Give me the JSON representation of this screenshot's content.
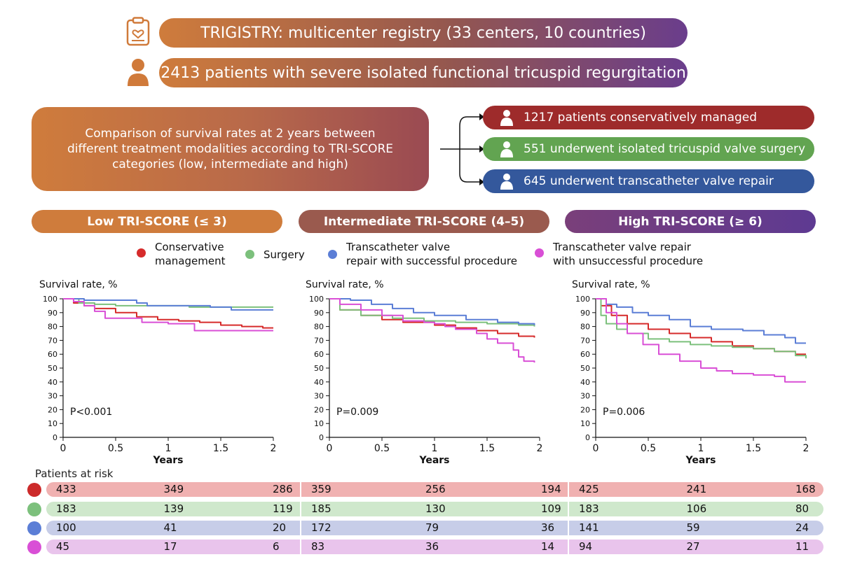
{
  "header": {
    "registry": "TRIGISTRY: multicenter registry (33 centers, 10 countries)",
    "population": "2413 patients with severe isolated functional tricuspid regurgitation"
  },
  "summary": {
    "line1": "Comparison of survival rates at 2 years between",
    "line2": "different treatment modalities according to TRI-SCORE",
    "line3": "categories (low, intermediate and high)"
  },
  "arms": [
    {
      "label": "1217 patients conservatively managed",
      "color": "#9e2b2b"
    },
    {
      "label": "551 underwent isolated tricuspid valve surgery",
      "color": "#62a451"
    },
    {
      "label": "645 underwent transcatheter valve repair",
      "color": "#34589c"
    }
  ],
  "categories": [
    {
      "label": "Low TRI-SCORE (≤ 3)"
    },
    {
      "label": "Intermediate TRI-SCORE (4–5)"
    },
    {
      "label": "High TRI-SCORE (≥ 6)"
    }
  ],
  "legend": [
    {
      "line1": "Conservative",
      "line2": "management",
      "color": "#d62b2b"
    },
    {
      "line1": "Surgery",
      "line2": "",
      "color": "#7cc07c"
    },
    {
      "line1": "Transcatheter valve",
      "line2": "repair with successful procedure",
      "color": "#5b7ed6"
    },
    {
      "line1": "Transcatheter valve repair",
      "line2": "with unsuccessful procedure",
      "color": "#d94fd6"
    }
  ],
  "risk": {
    "title": "Patients at risk",
    "rows": [
      {
        "color": "#cc2a2a",
        "bg": "#f0b1b1",
        "values": [
          [
            "433",
            "349",
            "286"
          ],
          [
            "359",
            "256",
            "194"
          ],
          [
            "425",
            "241",
            "168"
          ]
        ]
      },
      {
        "color": "#7cc07c",
        "bg": "#cfe8cc",
        "values": [
          [
            "183",
            "139",
            "119"
          ],
          [
            "185",
            "130",
            "109"
          ],
          [
            "183",
            "106",
            "80"
          ]
        ]
      },
      {
        "color": "#5b7ed6",
        "bg": "#c7cde8",
        "values": [
          [
            "100",
            "41",
            "20"
          ],
          [
            "172",
            "79",
            "36"
          ],
          [
            "141",
            "59",
            "24"
          ]
        ]
      },
      {
        "color": "#d94fd6",
        "bg": "#e9c4ec",
        "values": [
          [
            "45",
            "17",
            "6"
          ],
          [
            "83",
            "36",
            "14"
          ],
          [
            "94",
            "27",
            "11"
          ]
        ]
      }
    ]
  },
  "chart_data": [
    {
      "type": "line",
      "title": "Low TRI-SCORE (≤ 3)",
      "ylabel": "Survival rate, %",
      "xlabel": "Years",
      "xlim": [
        0,
        2
      ],
      "ylim": [
        0,
        100
      ],
      "xticks": [
        "0",
        "0.5",
        "1",
        "1.5",
        "2"
      ],
      "yticks": [
        "0",
        "10",
        "20",
        "30",
        "40",
        "50",
        "60",
        "70",
        "80",
        "90",
        "100"
      ],
      "pvalue": "P<0.001",
      "series": [
        {
          "name": "Conservative management",
          "color": "#d62b2b",
          "x": [
            0,
            0.1,
            0.2,
            0.3,
            0.5,
            0.7,
            0.9,
            1.1,
            1.3,
            1.5,
            1.7,
            1.9,
            2.0
          ],
          "y": [
            100,
            97,
            95,
            93,
            90,
            87,
            85,
            84,
            83,
            81,
            80,
            79,
            79
          ]
        },
        {
          "name": "Surgery",
          "color": "#7cc07c",
          "x": [
            0,
            0.15,
            0.3,
            0.5,
            0.8,
            1.2,
            1.6,
            2.0
          ],
          "y": [
            100,
            97,
            96,
            95,
            95,
            94,
            94,
            94
          ]
        },
        {
          "name": "Transcatheter valve repair with successful procedure",
          "color": "#5b7ed6",
          "x": [
            0,
            0.2,
            0.5,
            0.7,
            0.8,
            1.2,
            1.4,
            1.6,
            2.0
          ],
          "y": [
            100,
            99,
            99,
            97,
            95,
            95,
            94,
            92,
            92
          ]
        },
        {
          "name": "Transcatheter valve repair with unsuccessful procedure",
          "color": "#d94fd6",
          "x": [
            0,
            0.1,
            0.2,
            0.3,
            0.4,
            0.75,
            1.0,
            1.25,
            1.6,
            2.0
          ],
          "y": [
            100,
            98,
            95,
            91,
            86,
            83,
            82,
            77,
            77,
            77
          ]
        }
      ]
    },
    {
      "type": "line",
      "title": "Intermediate TRI-SCORE (4–5)",
      "ylabel": "Survival rate, %",
      "xlabel": "Years",
      "xlim": [
        0,
        2
      ],
      "ylim": [
        0,
        100
      ],
      "xticks": [
        "0",
        "0.5",
        "1",
        "1.5",
        "2"
      ],
      "yticks": [
        "0",
        "10",
        "20",
        "30",
        "40",
        "50",
        "60",
        "70",
        "80",
        "90",
        "100"
      ],
      "pvalue": "P=0.009",
      "series": [
        {
          "name": "Conservative management",
          "color": "#d62b2b",
          "x": [
            0,
            0.1,
            0.3,
            0.5,
            0.7,
            1.0,
            1.2,
            1.4,
            1.6,
            1.8,
            1.95
          ],
          "y": [
            100,
            92,
            88,
            85,
            83,
            81,
            79,
            77,
            75,
            73,
            72
          ]
        },
        {
          "name": "Surgery",
          "color": "#7cc07c",
          "x": [
            0,
            0.1,
            0.3,
            0.6,
            0.9,
            1.2,
            1.5,
            1.8,
            1.95
          ],
          "y": [
            100,
            92,
            88,
            86,
            84,
            83,
            82,
            81,
            80
          ]
        },
        {
          "name": "Transcatheter valve repair with successful procedure",
          "color": "#5b7ed6",
          "x": [
            0,
            0.2,
            0.4,
            0.6,
            0.8,
            1.0,
            1.3,
            1.6,
            1.8,
            1.95
          ],
          "y": [
            100,
            99,
            96,
            93,
            90,
            88,
            85,
            83,
            82,
            81
          ]
        },
        {
          "name": "Transcatheter valve repair with unsuccessful procedure",
          "color": "#d94fd6",
          "x": [
            0,
            0.1,
            0.3,
            0.5,
            0.7,
            0.9,
            1.0,
            1.1,
            1.2,
            1.4,
            1.5,
            1.6,
            1.75,
            1.8,
            1.85,
            1.95
          ],
          "y": [
            100,
            96,
            92,
            88,
            84,
            83,
            82,
            80,
            78,
            75,
            71,
            68,
            63,
            58,
            55,
            54
          ]
        }
      ]
    },
    {
      "type": "line",
      "title": "High TRI-SCORE (≥ 6)",
      "ylabel": "Survival rate, %",
      "xlabel": "Years",
      "xlim": [
        0,
        2
      ],
      "ylim": [
        0,
        100
      ],
      "xticks": [
        "0",
        "0.5",
        "1",
        "1.5",
        "2"
      ],
      "yticks": [
        "0",
        "10",
        "20",
        "30",
        "40",
        "50",
        "60",
        "70",
        "80",
        "90",
        "100"
      ],
      "pvalue": "P=0.006",
      "series": [
        {
          "name": "Conservative management",
          "color": "#d62b2b",
          "x": [
            0,
            0.05,
            0.15,
            0.3,
            0.5,
            0.7,
            0.9,
            1.1,
            1.3,
            1.5,
            1.7,
            1.9,
            2.0
          ],
          "y": [
            100,
            95,
            88,
            82,
            78,
            75,
            72,
            69,
            66,
            64,
            62,
            60,
            60
          ]
        },
        {
          "name": "Surgery",
          "color": "#7cc07c",
          "x": [
            0,
            0.05,
            0.1,
            0.2,
            0.3,
            0.5,
            0.7,
            0.9,
            1.1,
            1.3,
            1.5,
            1.7,
            1.9,
            2.0
          ],
          "y": [
            100,
            88,
            82,
            78,
            75,
            71,
            69,
            67,
            66,
            65,
            64,
            62,
            59,
            57
          ]
        },
        {
          "name": "Transcatheter valve repair with successful procedure",
          "color": "#5b7ed6",
          "x": [
            0,
            0.1,
            0.2,
            0.35,
            0.5,
            0.7,
            0.9,
            1.1,
            1.4,
            1.6,
            1.8,
            1.9,
            2.0
          ],
          "y": [
            100,
            96,
            94,
            90,
            88,
            85,
            80,
            78,
            77,
            74,
            72,
            68,
            68
          ]
        },
        {
          "name": "Transcatheter valve repair with unsuccessful procedure",
          "color": "#d94fd6",
          "x": [
            0,
            0.1,
            0.2,
            0.3,
            0.45,
            0.6,
            0.8,
            1.0,
            1.15,
            1.3,
            1.5,
            1.7,
            1.8,
            2.0
          ],
          "y": [
            100,
            90,
            82,
            75,
            67,
            60,
            55,
            50,
            48,
            46,
            45,
            44,
            40,
            40
          ]
        }
      ]
    }
  ]
}
